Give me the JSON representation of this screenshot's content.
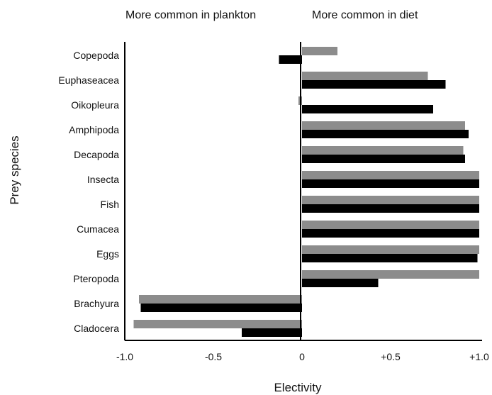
{
  "chart_data": {
    "type": "bar",
    "orientation": "horizontal",
    "annotations": {
      "left": "More common in plankton",
      "right": "More common in diet"
    },
    "xlabel": "Electivity",
    "ylabel": "Prey species",
    "xlim": [
      -1.0,
      1.0
    ],
    "x_ticks": [
      -1.0,
      -0.5,
      0,
      0.5,
      1.0
    ],
    "x_tick_labels": [
      "-1.0",
      "-0.5",
      "0",
      "+0.5",
      "+1.0"
    ],
    "grid": false,
    "categories": [
      "Copepoda",
      "Euphaseacea",
      "Oikopleura",
      "Amphipoda",
      "Decapoda",
      "Insecta",
      "Fish",
      "Cumacea",
      "Eggs",
      "Pteropoda",
      "Brachyura",
      "Cladocera"
    ],
    "series": [
      {
        "color": "#8c8c8c",
        "values": [
          0.2,
          0.71,
          -0.02,
          0.92,
          0.91,
          1.0,
          1.0,
          1.0,
          1.0,
          1.0,
          -0.92,
          -0.95
        ]
      },
      {
        "color": "#000000",
        "values": [
          -0.13,
          0.81,
          0.74,
          0.94,
          0.92,
          1.0,
          1.0,
          1.0,
          0.99,
          0.43,
          -0.91,
          -0.34
        ]
      }
    ]
  }
}
